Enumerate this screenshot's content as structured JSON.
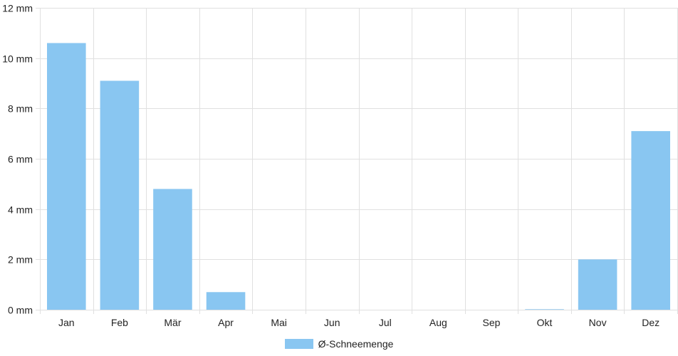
{
  "chart_data": {
    "type": "bar",
    "title": "",
    "xlabel": "",
    "ylabel": "",
    "categories": [
      "Jan",
      "Feb",
      "Mär",
      "Apr",
      "Mai",
      "Jun",
      "Jul",
      "Aug",
      "Sep",
      "Okt",
      "Nov",
      "Dez"
    ],
    "series": [
      {
        "name": "Ø-Schneemenge",
        "values": [
          10.6,
          9.1,
          4.8,
          0.7,
          0,
          0,
          0,
          0,
          0,
          0.02,
          2.0,
          7.1
        ]
      }
    ],
    "ylim": [
      0,
      12
    ],
    "y_ticks": [
      "0 mm",
      "2 mm",
      "4 mm",
      "6 mm",
      "8 mm",
      "10 mm",
      "12 mm"
    ],
    "grid": true,
    "legend_position": "bottom",
    "colors": {
      "bar": "#89c6f1",
      "grid": "#e0e0e0",
      "text": "#222222"
    }
  }
}
